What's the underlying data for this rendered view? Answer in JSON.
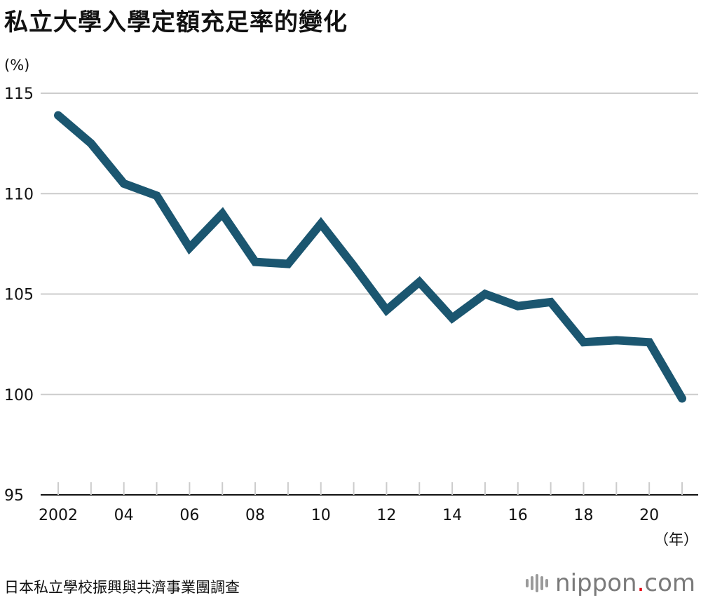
{
  "title": "私立大學入學定額充足率的變化",
  "source": "日本私立學校振興與共濟事業團調查",
  "logo": {
    "name": "nippon",
    "dot": ".",
    "suffix": "com"
  },
  "colors": {
    "line": "#1b5670",
    "grid": "#cccccc",
    "axis": "#111111"
  },
  "chart_data": {
    "type": "line",
    "title": "私立大學入學定額充足率的變化",
    "ylabel": "(%)",
    "xlabel": "（年）",
    "ylim": [
      95,
      115
    ],
    "yticks": [
      95,
      100,
      105,
      110,
      115
    ],
    "xlim": [
      2002,
      2021
    ],
    "xticks": [
      {
        "value": 2002,
        "label": "2002"
      },
      {
        "value": 2004,
        "label": "04"
      },
      {
        "value": 2006,
        "label": "06"
      },
      {
        "value": 2008,
        "label": "08"
      },
      {
        "value": 2010,
        "label": "10"
      },
      {
        "value": 2012,
        "label": "12"
      },
      {
        "value": 2014,
        "label": "14"
      },
      {
        "value": 2016,
        "label": "16"
      },
      {
        "value": 2018,
        "label": "18"
      },
      {
        "value": 2020,
        "label": "20"
      }
    ],
    "x": [
      2002,
      2003,
      2004,
      2005,
      2006,
      2007,
      2008,
      2009,
      2010,
      2011,
      2012,
      2013,
      2014,
      2015,
      2016,
      2017,
      2018,
      2019,
      2020,
      2021
    ],
    "series": [
      {
        "values": [
          113.9,
          112.5,
          110.5,
          109.9,
          107.3,
          109.0,
          106.6,
          106.5,
          108.5,
          106.4,
          104.2,
          105.6,
          103.8,
          105.0,
          104.4,
          104.6,
          102.6,
          102.7,
          102.6,
          99.8
        ]
      }
    ],
    "grid": true
  }
}
